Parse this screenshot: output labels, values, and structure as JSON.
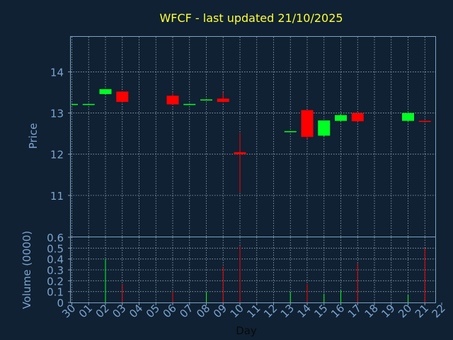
{
  "colors": {
    "background": "#0f2133",
    "title": "#ffff33",
    "axis_text": "#7da4cf",
    "frame": "#7fa0c0",
    "grid": "#c8d4e0",
    "up": "#00ff22",
    "down": "#ff0000",
    "xlabel": "#0a0a0a"
  },
  "chart_data": {
    "type": "candlestick",
    "title": "WFCF - last updated 21/10/2025",
    "price_panel": {
      "ylabel": "Price",
      "ylim": [
        10.0,
        14.85
      ],
      "yticks": [
        11,
        12,
        13,
        14
      ],
      "grid": true
    },
    "volume_panel": {
      "ylabel": "Volume (0000)",
      "ylim": [
        0,
        0.6
      ],
      "yticks": [
        0,
        0.1,
        0.2,
        0.3,
        0.4,
        0.5,
        0.6
      ],
      "grid": true
    },
    "xlabel": "Day",
    "x_tick_labels": [
      "30",
      "01",
      "02",
      "03",
      "04",
      "05",
      "06",
      "07",
      "08",
      "09",
      "10",
      "11",
      "12",
      "13",
      "14",
      "15",
      "16",
      "17",
      "18",
      "19",
      "20",
      "21",
      "22"
    ],
    "candles": [
      {
        "day": "30",
        "open": 13.22,
        "high": 13.23,
        "low": 13.21,
        "close": 13.22,
        "volume": 0.0
      },
      {
        "day": "01",
        "open": 13.22,
        "high": 13.23,
        "low": 13.21,
        "close": 13.22,
        "volume": 0.0
      },
      {
        "day": "02",
        "open": 13.46,
        "high": 13.58,
        "low": 13.45,
        "close": 13.58,
        "volume": 0.4
      },
      {
        "day": "03",
        "open": 13.52,
        "high": 13.52,
        "low": 13.27,
        "close": 13.27,
        "volume": 0.17
      },
      {
        "day": "06",
        "open": 13.42,
        "high": 13.48,
        "low": 13.21,
        "close": 13.21,
        "volume": 0.1
      },
      {
        "day": "07",
        "open": 13.22,
        "high": 13.23,
        "low": 13.21,
        "close": 13.22,
        "volume": 0.0
      },
      {
        "day": "08",
        "open": 13.32,
        "high": 13.33,
        "low": 13.31,
        "close": 13.33,
        "volume": 0.1
      },
      {
        "day": "09",
        "open": 13.35,
        "high": 13.5,
        "low": 13.26,
        "close": 13.27,
        "volume": 0.33
      },
      {
        "day": "10",
        "open": 12.05,
        "high": 12.52,
        "low": 11.07,
        "close": 12.0,
        "volume": 0.52
      },
      {
        "day": "13",
        "open": 12.55,
        "high": 12.56,
        "low": 12.53,
        "close": 12.56,
        "volume": 0.1
      },
      {
        "day": "14",
        "open": 13.07,
        "high": 13.07,
        "low": 12.38,
        "close": 12.42,
        "volume": 0.17
      },
      {
        "day": "15",
        "open": 12.45,
        "high": 12.82,
        "low": 12.43,
        "close": 12.82,
        "volume": 0.08
      },
      {
        "day": "16",
        "open": 12.81,
        "high": 12.96,
        "low": 12.8,
        "close": 12.95,
        "volume": 0.11
      },
      {
        "day": "17",
        "open": 13.0,
        "high": 13.0,
        "low": 12.8,
        "close": 12.8,
        "volume": 0.36
      },
      {
        "day": "20",
        "open": 12.81,
        "high": 13.0,
        "low": 12.8,
        "close": 13.0,
        "volume": 0.07
      },
      {
        "day": "21",
        "open": 12.81,
        "high": 12.82,
        "low": 12.79,
        "close": 12.8,
        "volume": 0.5
      }
    ]
  }
}
